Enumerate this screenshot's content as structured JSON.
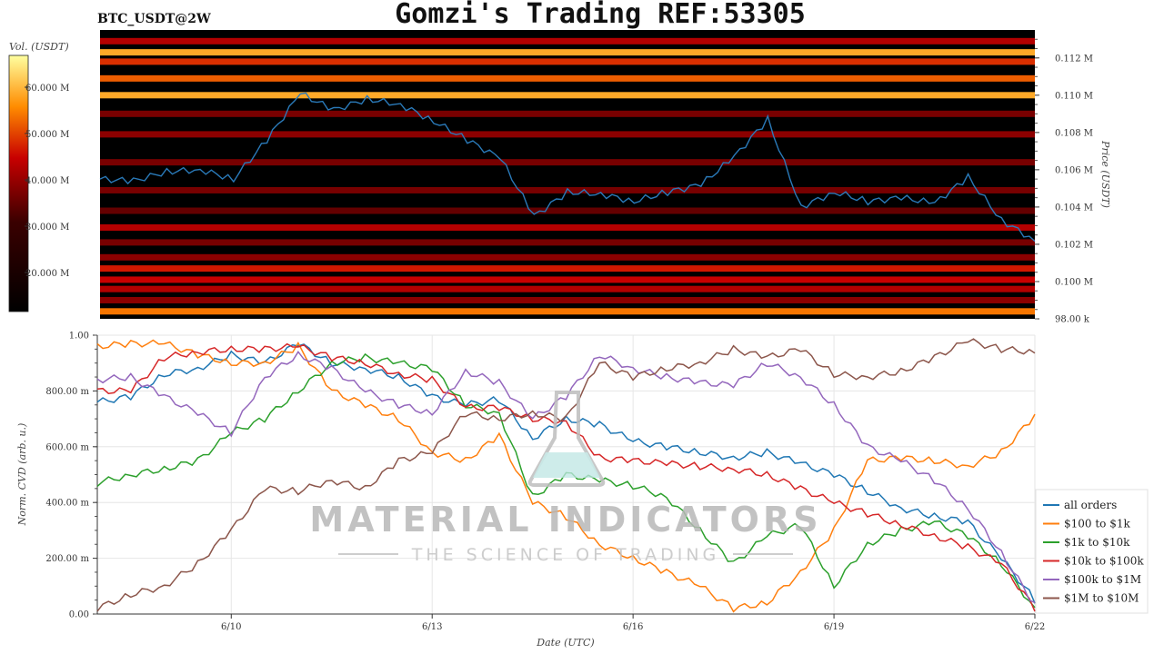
{
  "header": {
    "pair": "BTC_USDT@2W",
    "title": "Gomzi's Trading REF:53305"
  },
  "watermark": {
    "line1": "MATERIAL INDICATORS",
    "line2": "THE SCIENCE OF TRADING"
  },
  "colors": {
    "price_line": "#2a7ab9",
    "heat_low": "#000000",
    "heat_mid": "#c80000",
    "heat_high": "#ffffa0"
  },
  "chart_data": [
    {
      "type": "heatmap",
      "ylabel": "Price (USDT)",
      "colorbar_label": "Vol. (USDT)",
      "colorbar_ticks": [
        "20.000 M",
        "30.000 M",
        "40.000 M",
        "50.000 M",
        "60.000 M"
      ],
      "y_tick_labels": [
        "98.00 k",
        "0.100 M",
        "0.102 M",
        "0.104 M",
        "0.106 M",
        "0.108 M",
        "0.110 M",
        "0.112 M"
      ],
      "ylim": [
        98000,
        113500
      ],
      "x_start": "2025-06-08",
      "x_end": "2025-06-22",
      "price_series": {
        "name": "price",
        "x": [
          0,
          0.5,
          1,
          1.5,
          2,
          2.5,
          3,
          3.5,
          4,
          4.5,
          5,
          5.5,
          6,
          6.5,
          7,
          7.5,
          8,
          8.5,
          9,
          9.5,
          10,
          10.5,
          11,
          11.5,
          12,
          12.5,
          13,
          13.5,
          14
        ],
        "y": [
          105500,
          105400,
          105900,
          106000,
          105500,
          107600,
          110100,
          109200,
          109800,
          109500,
          108600,
          107600,
          106600,
          103500,
          104800,
          104700,
          104300,
          104800,
          105200,
          106700,
          108700,
          104000,
          104800,
          104300,
          104500,
          104200,
          105600,
          103300,
          102200
        ]
      },
      "volume_bands": [
        {
          "price": 98400,
          "intensity": 0.75
        },
        {
          "price": 99000,
          "intensity": 0.35
        },
        {
          "price": 99600,
          "intensity": 0.45
        },
        {
          "price": 100100,
          "intensity": 0.5
        },
        {
          "price": 100700,
          "intensity": 0.55
        },
        {
          "price": 101300,
          "intensity": 0.35
        },
        {
          "price": 102100,
          "intensity": 0.3
        },
        {
          "price": 102900,
          "intensity": 0.45
        },
        {
          "price": 103800,
          "intensity": 0.25
        },
        {
          "price": 104900,
          "intensity": 0.3
        },
        {
          "price": 106400,
          "intensity": 0.3
        },
        {
          "price": 107900,
          "intensity": 0.35
        },
        {
          "price": 109000,
          "intensity": 0.3
        },
        {
          "price": 110000,
          "intensity": 0.85
        },
        {
          "price": 110900,
          "intensity": 0.7
        },
        {
          "price": 111800,
          "intensity": 0.6
        },
        {
          "price": 112300,
          "intensity": 0.85
        },
        {
          "price": 112900,
          "intensity": 0.45
        }
      ]
    },
    {
      "type": "line",
      "xlabel": "Date (UTC)",
      "ylabel": "Norm. CVD (arb. u.)",
      "ylim": [
        0,
        1
      ],
      "x_start": "2025-06-08",
      "x_end": "2025-06-22",
      "x_tick_labels": [
        "6/10",
        "6/13",
        "6/16",
        "6/19",
        "6/22"
      ],
      "x_tick_positions": [
        "2025-06-10",
        "2025-06-13",
        "2025-06-16",
        "2025-06-19",
        "2025-06-22"
      ],
      "y_tick_labels": [
        "0.00",
        "200.00 m",
        "400.00 m",
        "600.00 m",
        "800.00 m",
        "1.00"
      ],
      "legend_position": "right",
      "x": [
        0,
        0.5,
        1,
        1.5,
        2,
        2.5,
        3,
        3.5,
        4,
        4.5,
        5,
        5.5,
        6,
        6.5,
        7,
        7.5,
        8,
        8.5,
        9,
        9.5,
        10,
        10.5,
        11,
        11.5,
        12,
        12.5,
        13,
        13.5,
        14
      ],
      "series": [
        {
          "name": "all orders",
          "color": "#1f77b4",
          "values": [
            0.76,
            0.78,
            0.86,
            0.88,
            0.93,
            0.9,
            0.97,
            0.9,
            0.88,
            0.85,
            0.78,
            0.75,
            0.77,
            0.63,
            0.7,
            0.68,
            0.62,
            0.6,
            0.58,
            0.56,
            0.58,
            0.54,
            0.5,
            0.44,
            0.38,
            0.35,
            0.33,
            0.2,
            0.05
          ]
        },
        {
          "name": "$100 to $1k",
          "color": "#ff7f0e",
          "values": [
            0.96,
            0.97,
            0.97,
            0.93,
            0.9,
            0.9,
            0.96,
            0.8,
            0.75,
            0.7,
            0.58,
            0.55,
            0.64,
            0.4,
            0.35,
            0.25,
            0.2,
            0.15,
            0.1,
            0.02,
            0.04,
            0.15,
            0.3,
            0.55,
            0.56,
            0.55,
            0.53,
            0.58,
            0.71
          ]
        },
        {
          "name": "$1k to $10k",
          "color": "#2ca02c",
          "values": [
            0.47,
            0.5,
            0.52,
            0.55,
            0.65,
            0.7,
            0.8,
            0.9,
            0.92,
            0.9,
            0.88,
            0.75,
            0.72,
            0.42,
            0.5,
            0.48,
            0.46,
            0.42,
            0.3,
            0.18,
            0.28,
            0.32,
            0.1,
            0.25,
            0.3,
            0.33,
            0.28,
            0.18,
            0.02
          ]
        },
        {
          "name": "$10k to $100k",
          "color": "#d62728",
          "values": [
            0.8,
            0.8,
            0.92,
            0.94,
            0.95,
            0.95,
            0.96,
            0.92,
            0.9,
            0.86,
            0.84,
            0.74,
            0.74,
            0.7,
            0.69,
            0.56,
            0.55,
            0.54,
            0.53,
            0.52,
            0.5,
            0.45,
            0.4,
            0.36,
            0.32,
            0.28,
            0.24,
            0.18,
            0.02
          ]
        },
        {
          "name": "$100k to $1M",
          "color": "#9467bd",
          "values": [
            0.84,
            0.85,
            0.78,
            0.72,
            0.65,
            0.85,
            0.93,
            0.88,
            0.8,
            0.75,
            0.72,
            0.87,
            0.83,
            0.7,
            0.78,
            0.93,
            0.88,
            0.85,
            0.83,
            0.82,
            0.9,
            0.85,
            0.75,
            0.6,
            0.55,
            0.48,
            0.38,
            0.22,
            0.03
          ]
        },
        {
          "name": "$1M to $10M",
          "color": "#8c564b",
          "values": [
            0.02,
            0.07,
            0.1,
            0.18,
            0.3,
            0.45,
            0.44,
            0.48,
            0.45,
            0.55,
            0.58,
            0.72,
            0.7,
            0.72,
            0.7,
            0.9,
            0.85,
            0.88,
            0.9,
            0.95,
            0.92,
            0.95,
            0.86,
            0.85,
            0.87,
            0.92,
            0.98,
            0.95,
            0.94
          ]
        }
      ]
    }
  ]
}
